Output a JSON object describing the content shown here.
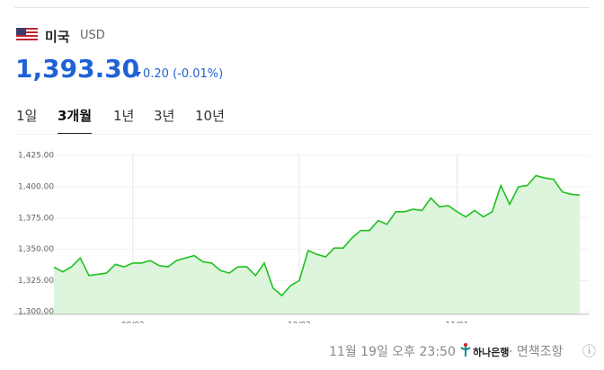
{
  "header": {
    "country": "미국",
    "currency": "USD",
    "price": "1,393.30",
    "change": "0.20 (-0.01%)"
  },
  "tabs": [
    "1일",
    "3개월",
    "1년",
    "3년",
    "10년"
  ],
  "selected_tab": 1,
  "chart_data": {
    "type": "line",
    "categories": [
      null,
      null,
      null,
      null,
      null,
      null,
      null,
      null,
      null,
      "09/02",
      null,
      null,
      null,
      null,
      null,
      null,
      null,
      null,
      null,
      null,
      null,
      null,
      null,
      null,
      null,
      null,
      null,
      null,
      "10/02",
      null,
      null,
      null,
      null,
      null,
      null,
      null,
      null,
      null,
      null,
      null,
      null,
      null,
      null,
      null,
      null,
      null,
      "11/01",
      null,
      null,
      null,
      null,
      null,
      null,
      null,
      null,
      null,
      null,
      null,
      null,
      null,
      null
    ],
    "series": [
      {
        "name": "USD",
        "color": "#20c020",
        "values": [
          1335.7,
          1332,
          1336,
          1343,
          1329,
          1330,
          1331,
          1338,
          1336,
          1339,
          1339,
          1341,
          1337,
          1336,
          1341,
          1343,
          1345,
          1340,
          1339,
          1333,
          1331,
          1336,
          1336,
          1329,
          1339,
          1319,
          1313,
          1321,
          1325,
          1349,
          1346,
          1344,
          1351,
          1351,
          1359,
          1365,
          1365,
          1373,
          1370,
          1380,
          1380,
          1382,
          1381,
          1391,
          1384,
          1385,
          1380,
          1376,
          1381,
          1376,
          1380,
          1401,
          1386,
          1400,
          1401,
          1409,
          1407,
          1406,
          1396,
          1394,
          1393.3
        ]
      }
    ],
    "ylim": [
      1298,
      1428
    ],
    "yticks": [
      {
        "value": 1300,
        "label": "1,300.00"
      },
      {
        "value": 1325,
        "label": "1,325.00"
      },
      {
        "value": 1350,
        "label": "1,350.00"
      },
      {
        "value": 1375,
        "label": "1,375.00"
      },
      {
        "value": 1400,
        "label": "1,400.00"
      },
      {
        "value": 1425,
        "label": "1,425.00"
      }
    ],
    "grid": true
  },
  "footer": {
    "time": "11월 19일 오후 23:50",
    "bank": "하나은행",
    "disclaimer": "· 면책조항",
    "info": "ⓘ"
  }
}
